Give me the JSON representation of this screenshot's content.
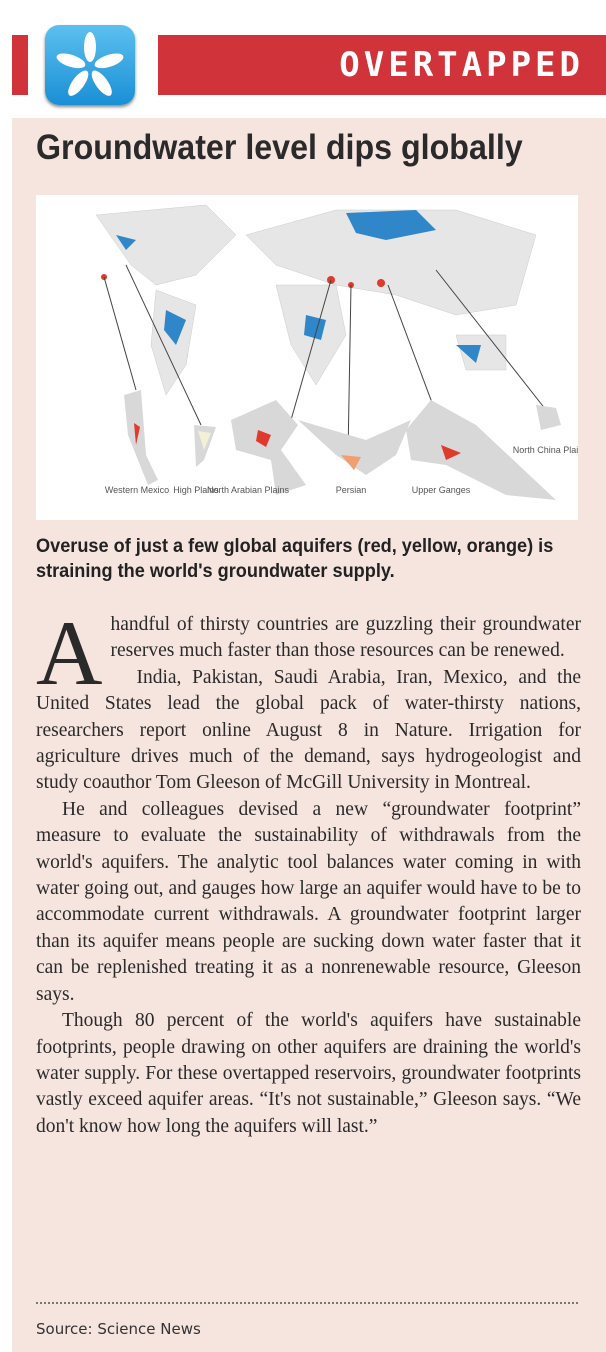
{
  "header": {
    "section_label": "OVERTAPPED",
    "logo_icon": "asterisk-flower-icon",
    "accent": "#d0343a"
  },
  "title": "Groundwater level dips globally",
  "map": {
    "labels": [
      "Western Mexico",
      "High Plains",
      "North Arabian Plains",
      "Persian",
      "Upper Ganges",
      "North China Plain"
    ]
  },
  "caption": "Overuse of just a few global aquifers (red, yellow, orange) is straining the world's groundwater supply.",
  "body": {
    "drop_cap": "A",
    "p1": "handful of thirsty countries are guzzling their groundwater reserves much faster than those resources can be renewed.",
    "p2": "India, Pakistan, Saudi Arabia, Iran, Mexico, and the United States lead the global pack of water-thirsty nations, researchers report online August 8 in Nature. Irrigation for agriculture drives much of the demand, says hydrogeologist and study coauthor Tom Gleeson of McGill University in Montreal.",
    "p3": "He and colleagues devised a new “groundwater footprint” measure to evaluate the sustainability of withdrawals from the world's aquifers. The analytic tool balances water coming in with water going out, and gauges how large an aquifer would have to be to accommodate current withdrawals. A groundwater footprint larger than its aquifer means people are sucking down water faster that it can be replenished  treating it as a nonrenewable resource, Gleeson says.",
    "p4": "Though 80 percent of the world's aquifers have sustainable footprints, people drawing on other aquifers are draining the world's water supply. For these overtapped reservoirs, groundwater footprints vastly exceed aquifer areas. “It's not sustainable,” Gleeson says. “We don't know how long the aquifers will last.”"
  },
  "source": "Source: Science News"
}
